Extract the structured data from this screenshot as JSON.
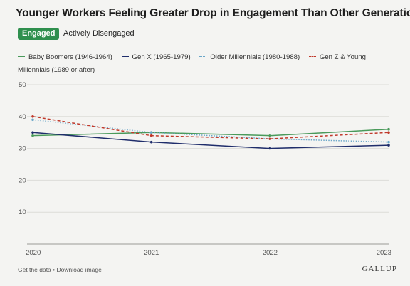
{
  "header": {
    "title": "Younger Workers Feeling Greater Drop in Engagement Than Other Generations"
  },
  "tabs": [
    {
      "label": "Engaged",
      "active": true
    },
    {
      "label": "Actively Disengaged",
      "active": false
    }
  ],
  "footer": {
    "get_data": "Get the data",
    "separator": "•",
    "download": "Download image",
    "logo": "GALLUP"
  },
  "colors": {
    "accent": "#2f8f4e",
    "background": "#f4f4f2",
    "grid": "#dcdcd8"
  },
  "chart_data": {
    "type": "line",
    "title": "Younger Workers Feeling Greater Drop in Engagement Than Other Generations",
    "xlabel": "",
    "ylabel": "",
    "categories": [
      "2020",
      "2021",
      "2022",
      "2023"
    ],
    "ylim": [
      0,
      50
    ],
    "yticks": [
      10,
      20,
      30,
      40,
      50
    ],
    "grid": true,
    "legend_position": "top",
    "series": [
      {
        "name": "Baby Boomers (1946-1964)",
        "values": [
          34,
          35,
          34,
          36
        ],
        "color": "#4a9a5b",
        "style": "solid"
      },
      {
        "name": "Gen X (1965-1979)",
        "values": [
          35,
          32,
          30,
          31
        ],
        "color": "#1f2d6b",
        "style": "solid"
      },
      {
        "name": "Older Millennials (1980-1988)",
        "values": [
          39,
          35,
          33,
          32
        ],
        "color": "#6aa6c8",
        "style": "dotted"
      },
      {
        "name": "Gen Z & Young Millennials (1989 or after)",
        "values": [
          40,
          34,
          33,
          35
        ],
        "color": "#c0392b",
        "style": "dashed"
      }
    ]
  }
}
